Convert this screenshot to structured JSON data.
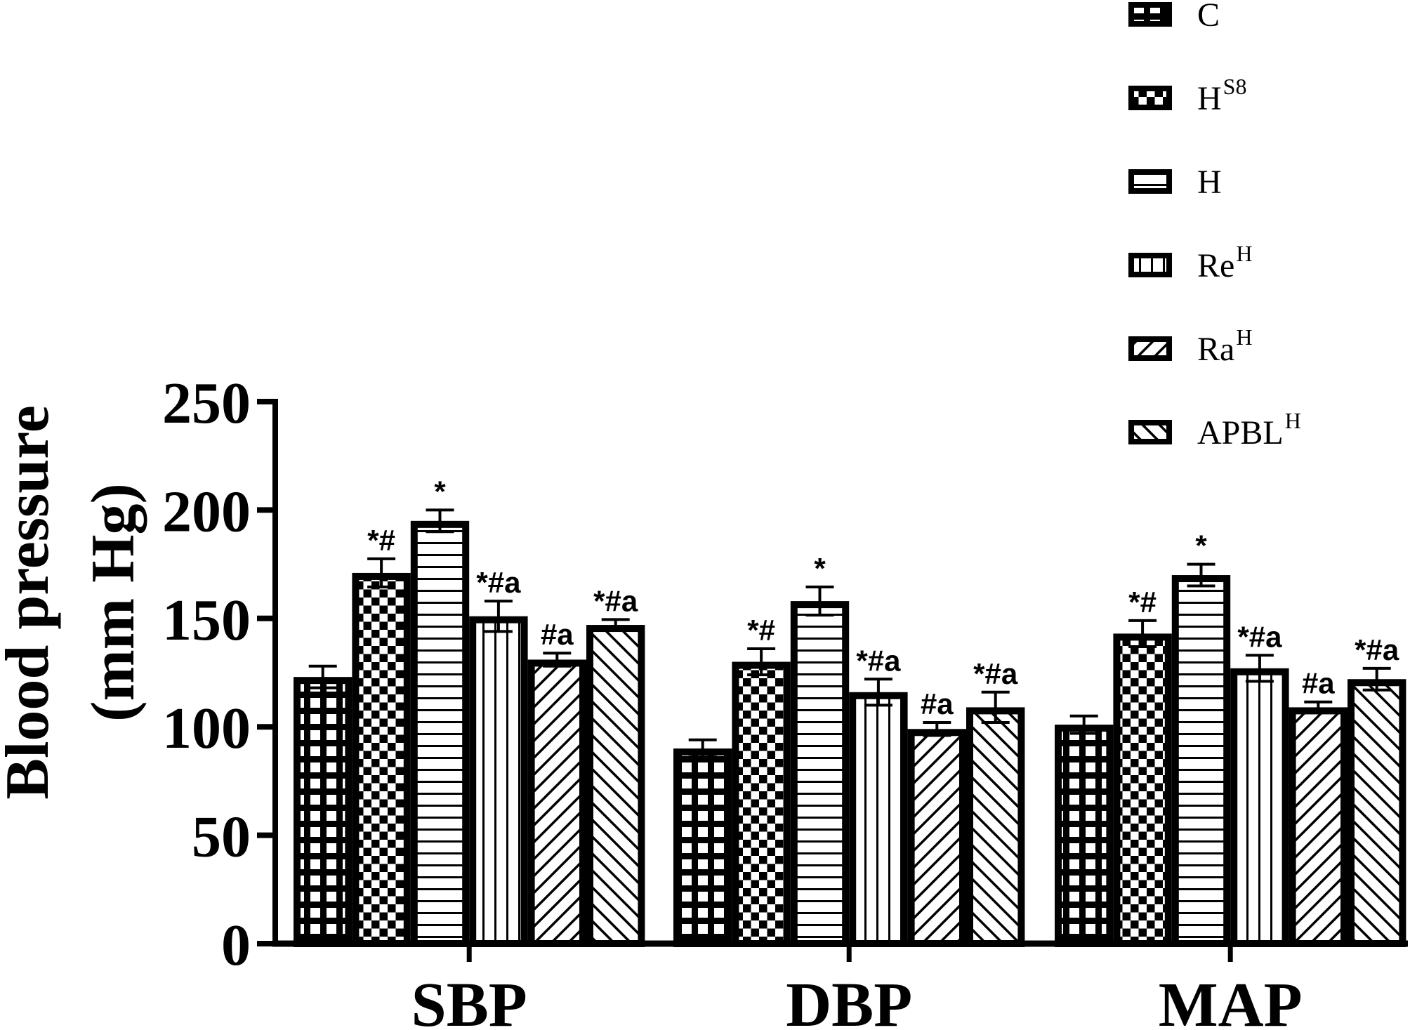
{
  "chart_data": {
    "type": "bar",
    "title": "",
    "xlabel": "",
    "ylabel": "Blood pressure (mm Hg)",
    "ylabel_lines": [
      "Blood pressure",
      "(mm Hg)"
    ],
    "ylim": [
      0,
      250
    ],
    "yticks": [
      0,
      50,
      100,
      150,
      200,
      250
    ],
    "grid": false,
    "legend_position": "top-right",
    "categories": [
      "SBP",
      "DBP",
      "MAP"
    ],
    "series": [
      {
        "name": "C",
        "base": "C",
        "sup": "",
        "pattern": "grid",
        "values": [
          123,
          90,
          101
        ],
        "errors": [
          5,
          4,
          4
        ],
        "annotations": [
          "",
          "",
          ""
        ]
      },
      {
        "name": "HS8",
        "base": "H",
        "sup": "S8",
        "pattern": "checker",
        "values": [
          171,
          130,
          143
        ],
        "errors": [
          6.5,
          6,
          6
        ],
        "annotations": [
          "*#",
          "*#",
          "*#"
        ]
      },
      {
        "name": "H",
        "base": "H",
        "sup": "",
        "pattern": "hlines",
        "values": [
          195,
          158,
          170
        ],
        "errors": [
          5,
          6.5,
          5
        ],
        "annotations": [
          "*",
          "*",
          "*"
        ]
      },
      {
        "name": "ReH",
        "base": "Re",
        "sup": "H",
        "pattern": "vlines",
        "values": [
          151,
          116,
          127
        ],
        "errors": [
          7,
          6,
          6
        ],
        "annotations": [
          "*#a",
          "*#a",
          "*#a"
        ]
      },
      {
        "name": "RaH",
        "base": "Ra",
        "sup": "H",
        "pattern": "diag-up",
        "values": [
          131,
          99,
          109
        ],
        "errors": [
          3,
          3,
          2.5
        ],
        "annotations": [
          "#a",
          "#a",
          "#a"
        ]
      },
      {
        "name": "APBLH",
        "base": "APBL",
        "sup": "H",
        "pattern": "diag-down",
        "values": [
          147,
          109,
          122
        ],
        "errors": [
          2.5,
          7,
          5
        ],
        "annotations": [
          "*#a",
          "*#a",
          "*#a"
        ]
      }
    ],
    "colors": {
      "ink": "#000000",
      "background": "#ffffff"
    }
  }
}
